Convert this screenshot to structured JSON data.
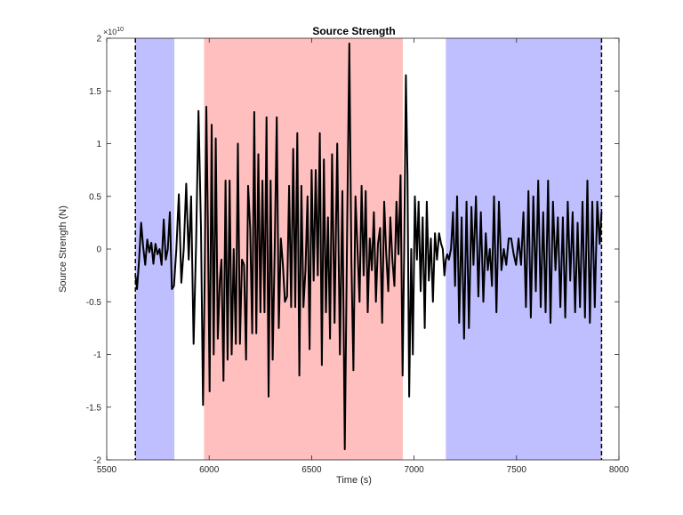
{
  "chart_data": {
    "type": "line",
    "title": "Source Strength",
    "xlabel": "Time (s)",
    "ylabel": "Source Strength (N)",
    "y_multiplier_label": "×10",
    "y_multiplier_exponent": "10",
    "xlim": [
      5500,
      8000
    ],
    "ylim": [
      -2,
      2
    ],
    "x_ticks": [
      5500,
      6000,
      6500,
      7000,
      7500,
      8000
    ],
    "x_tick_labels": [
      "5500",
      "6000",
      "6500",
      "7000",
      "7500",
      "8000"
    ],
    "y_ticks": [
      -2,
      -1.5,
      -1,
      -0.5,
      0,
      0.5,
      1,
      1.5,
      2
    ],
    "y_tick_labels": [
      "-2",
      "-1.5",
      "-1",
      "-0.5",
      "0",
      "0.5",
      "1",
      "1.5",
      "2"
    ],
    "grid": false,
    "shaded_regions": [
      {
        "x_start": 5640,
        "x_end": 5830,
        "color": "#bfbfff"
      },
      {
        "x_start": 5975,
        "x_end": 6945,
        "color": "#ffbfbf"
      },
      {
        "x_start": 7155,
        "x_end": 7915,
        "color": "#bfbfff"
      }
    ],
    "vlines": [
      {
        "x": 5640,
        "style": "dashed",
        "color": "#000000"
      },
      {
        "x": 7915,
        "style": "dashed",
        "color": "#000000"
      }
    ],
    "series": [
      {
        "color": "#000000",
        "points": [
          [
            5640,
            -0.25
          ],
          [
            5648,
            -0.38
          ],
          [
            5658,
            -0.1
          ],
          [
            5668,
            0.25
          ],
          [
            5678,
            0.02
          ],
          [
            5688,
            -0.15
          ],
          [
            5698,
            0.09
          ],
          [
            5708,
            -0.03
          ],
          [
            5718,
            0.06
          ],
          [
            5728,
            -0.14
          ],
          [
            5738,
            0.05
          ],
          [
            5748,
            -0.05
          ],
          [
            5758,
            0.0
          ],
          [
            5768,
            -0.15
          ],
          [
            5778,
            0.28
          ],
          [
            5788,
            -0.1
          ],
          [
            5798,
            0.0
          ],
          [
            5808,
            0.35
          ],
          [
            5818,
            -0.38
          ],
          [
            5828,
            -0.35
          ],
          [
            5840,
            0.0
          ],
          [
            5852,
            0.52
          ],
          [
            5864,
            -0.32
          ],
          [
            5876,
            0.0
          ],
          [
            5888,
            0.62
          ],
          [
            5900,
            -0.1
          ],
          [
            5912,
            0.5
          ],
          [
            5924,
            -0.9
          ],
          [
            5936,
            0.05
          ],
          [
            5948,
            1.31
          ],
          [
            5960,
            0.2
          ],
          [
            5970,
            -1.48
          ],
          [
            5978,
            -0.3
          ],
          [
            5986,
            1.35
          ],
          [
            5994,
            0.2
          ],
          [
            6002,
            -1.35
          ],
          [
            6012,
            1.18
          ],
          [
            6022,
            -1.0
          ],
          [
            6032,
            1.05
          ],
          [
            6042,
            -0.85
          ],
          [
            6052,
            -0.3
          ],
          [
            6060,
            -0.1
          ],
          [
            6070,
            -1.25
          ],
          [
            6080,
            0.65
          ],
          [
            6090,
            -1.05
          ],
          [
            6100,
            0.65
          ],
          [
            6110,
            -1.0
          ],
          [
            6120,
            0.0
          ],
          [
            6130,
            -0.9
          ],
          [
            6140,
            1.0
          ],
          [
            6150,
            -0.9
          ],
          [
            6160,
            -0.1
          ],
          [
            6170,
            -0.15
          ],
          [
            6180,
            -1.05
          ],
          [
            6190,
            0.6
          ],
          [
            6200,
            0.2
          ],
          [
            6210,
            -0.8
          ],
          [
            6220,
            1.3
          ],
          [
            6230,
            -0.8
          ],
          [
            6240,
            0.9
          ],
          [
            6250,
            -0.6
          ],
          [
            6260,
            0.65
          ],
          [
            6270,
            -0.6
          ],
          [
            6280,
            1.25
          ],
          [
            6290,
            -1.4
          ],
          [
            6300,
            0.65
          ],
          [
            6310,
            -1.05
          ],
          [
            6320,
            0.0
          ],
          [
            6330,
            1.25
          ],
          [
            6340,
            -0.75
          ],
          [
            6350,
            0.1
          ],
          [
            6360,
            -0.15
          ],
          [
            6370,
            -0.5
          ],
          [
            6380,
            -0.45
          ],
          [
            6390,
            0.6
          ],
          [
            6400,
            -0.55
          ],
          [
            6410,
            0.95
          ],
          [
            6420,
            -0.55
          ],
          [
            6430,
            1.1
          ],
          [
            6440,
            -1.2
          ],
          [
            6450,
            0.6
          ],
          [
            6460,
            -0.55
          ],
          [
            6470,
            -0.2
          ],
          [
            6480,
            0.5
          ],
          [
            6490,
            -0.95
          ],
          [
            6500,
            0.75
          ],
          [
            6510,
            -0.3
          ],
          [
            6520,
            0.75
          ],
          [
            6530,
            -0.25
          ],
          [
            6540,
            1.1
          ],
          [
            6550,
            -1.1
          ],
          [
            6560,
            0.85
          ],
          [
            6570,
            -0.6
          ],
          [
            6580,
            0.3
          ],
          [
            6590,
            -0.85
          ],
          [
            6600,
            0.9
          ],
          [
            6612,
            -0.7
          ],
          [
            6625,
            1.0
          ],
          [
            6638,
            -1.0
          ],
          [
            6650,
            0.55
          ],
          [
            6662,
            -1.9
          ],
          [
            6674,
            0.3
          ],
          [
            6684,
            1.95
          ],
          [
            6694,
            -0.1
          ],
          [
            6704,
            -1.15
          ],
          [
            6714,
            0.5
          ],
          [
            6724,
            0.0
          ],
          [
            6734,
            -0.5
          ],
          [
            6744,
            0.6
          ],
          [
            6754,
            -0.25
          ],
          [
            6764,
            0.55
          ],
          [
            6774,
            -0.6
          ],
          [
            6784,
            0.1
          ],
          [
            6794,
            -0.2
          ],
          [
            6804,
            0.35
          ],
          [
            6814,
            -0.5
          ],
          [
            6824,
            0.05
          ],
          [
            6834,
            0.2
          ],
          [
            6844,
            -0.7
          ],
          [
            6854,
            0.45
          ],
          [
            6864,
            -0.05
          ],
          [
            6874,
            -0.4
          ],
          [
            6884,
            0.3
          ],
          [
            6894,
            -0.1
          ],
          [
            6904,
            -0.35
          ],
          [
            6914,
            0.45
          ],
          [
            6924,
            -0.05
          ],
          [
            6934,
            0.7
          ],
          [
            6944,
            -1.2
          ],
          [
            6952,
            0.0
          ],
          [
            6960,
            1.65
          ],
          [
            6968,
            0.7
          ],
          [
            6976,
            -1.4
          ],
          [
            6986,
            0.0
          ],
          [
            6994,
            -1.0
          ],
          [
            7004,
            0.5
          ],
          [
            7014,
            -0.1
          ],
          [
            7022,
            0.45
          ],
          [
            7032,
            -0.4
          ],
          [
            7042,
            0.3
          ],
          [
            7052,
            -0.75
          ],
          [
            7062,
            0.45
          ],
          [
            7072,
            -0.3
          ],
          [
            7082,
            0.1
          ],
          [
            7092,
            -0.5
          ],
          [
            7102,
            0.15
          ],
          [
            7112,
            -0.1
          ],
          [
            7122,
            0.15
          ],
          [
            7132,
            0.05
          ],
          [
            7140,
            0.0
          ],
          [
            7148,
            -0.25
          ],
          [
            7155,
            -0.1
          ],
          [
            7162,
            -0.05
          ],
          [
            7170,
            -0.1
          ],
          [
            7180,
            0.0
          ],
          [
            7190,
            0.35
          ],
          [
            7200,
            -0.35
          ],
          [
            7210,
            0.5
          ],
          [
            7220,
            -0.7
          ],
          [
            7232,
            0.3
          ],
          [
            7244,
            -0.85
          ],
          [
            7256,
            0.45
          ],
          [
            7268,
            -0.75
          ],
          [
            7280,
            0.4
          ],
          [
            7290,
            -0.15
          ],
          [
            7302,
            0.5
          ],
          [
            7314,
            -0.45
          ],
          [
            7326,
            0.35
          ],
          [
            7338,
            -0.5
          ],
          [
            7350,
            0.15
          ],
          [
            7360,
            -0.2
          ],
          [
            7370,
            0.0
          ],
          [
            7380,
            -0.35
          ],
          [
            7390,
            0.5
          ],
          [
            7402,
            -0.6
          ],
          [
            7414,
            0.45
          ],
          [
            7426,
            -0.2
          ],
          [
            7438,
            0.0
          ],
          [
            7450,
            -0.15
          ],
          [
            7462,
            0.1
          ],
          [
            7474,
            0.1
          ],
          [
            7486,
            -0.05
          ],
          [
            7498,
            -0.15
          ],
          [
            7510,
            0.1
          ],
          [
            7522,
            -0.15
          ],
          [
            7534,
            0.35
          ],
          [
            7546,
            -0.55
          ],
          [
            7558,
            0.55
          ],
          [
            7570,
            -0.65
          ],
          [
            7582,
            0.5
          ],
          [
            7594,
            -0.4
          ],
          [
            7606,
            0.65
          ],
          [
            7618,
            -0.55
          ],
          [
            7630,
            0.35
          ],
          [
            7642,
            -0.6
          ],
          [
            7654,
            0.65
          ],
          [
            7666,
            -0.7
          ],
          [
            7678,
            0.45
          ],
          [
            7690,
            -0.2
          ],
          [
            7702,
            0.3
          ],
          [
            7714,
            -0.55
          ],
          [
            7726,
            0.3
          ],
          [
            7738,
            -0.65
          ],
          [
            7750,
            0.45
          ],
          [
            7762,
            -0.3
          ],
          [
            7774,
            0.35
          ],
          [
            7786,
            -0.6
          ],
          [
            7798,
            0.25
          ],
          [
            7810,
            -0.55
          ],
          [
            7822,
            0.45
          ],
          [
            7834,
            -0.65
          ],
          [
            7846,
            0.65
          ],
          [
            7858,
            -0.7
          ],
          [
            7870,
            0.45
          ],
          [
            7882,
            -0.55
          ],
          [
            7894,
            0.45
          ],
          [
            7906,
            0.05
          ],
          [
            7915,
            0.35
          ]
        ]
      }
    ]
  }
}
